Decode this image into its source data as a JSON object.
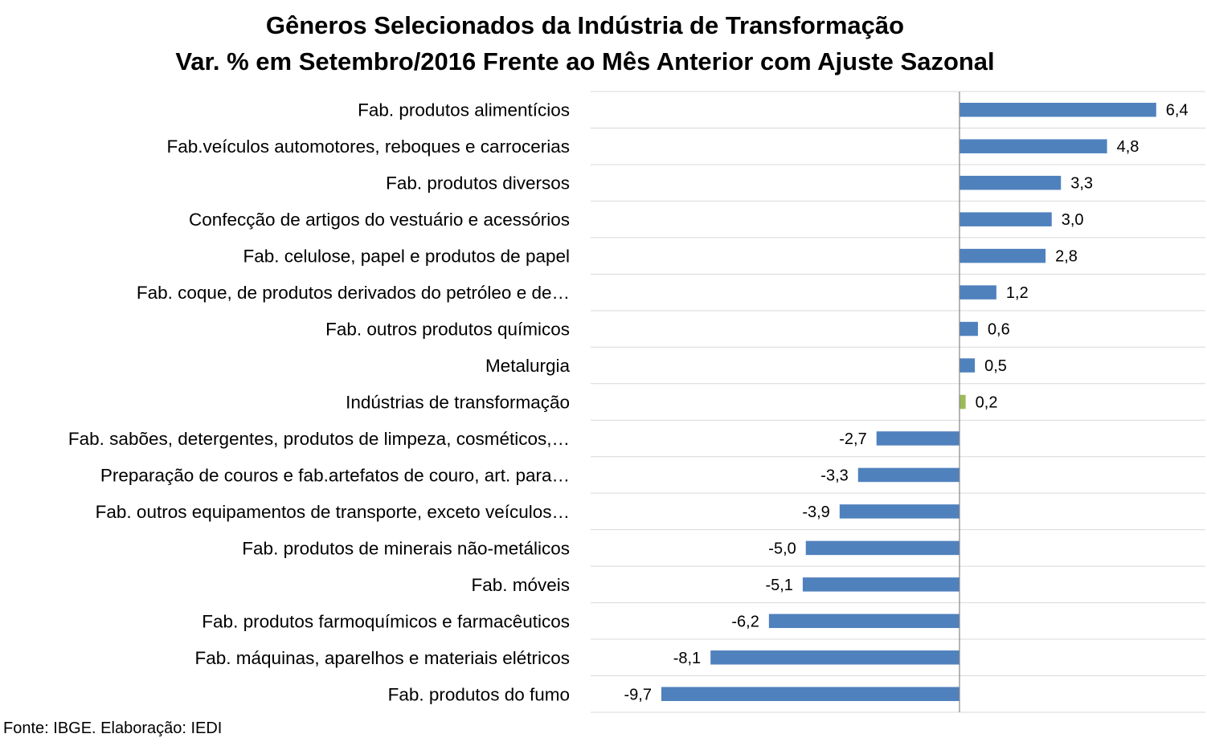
{
  "chart_data": {
    "type": "bar",
    "orientation": "horizontal",
    "title": "Gêneros Selecionados da Indústria de Transformação",
    "subtitle": "Var. % em Setembro/2016 Frente ao Mês Anterior com Ajuste Sazonal",
    "categories": [
      "Fab. produtos alimentícios",
      "Fab.veículos automotores, reboques e carrocerias",
      "Fab. produtos diversos",
      "Confecção de artigos do vestuário e acessórios",
      "Fab. celulose, papel e produtos de papel",
      "Fab. coque, de produtos derivados do petróleo e de…",
      "Fab. outros produtos químicos",
      "Metalurgia",
      "Indústrias de transformação",
      "Fab. sabões, detergentes, produtos de limpeza, cosméticos,…",
      "Preparação de couros e fab.artefatos de couro, art. para…",
      "Fab. outros equipamentos de transporte, exceto veículos…",
      "Fab. produtos de minerais não-metálicos",
      "Fab. móveis",
      "Fab. produtos farmoquímicos e farmacêuticos",
      "Fab. máquinas, aparelhos e materiais elétricos",
      "Fab. produtos do fumo"
    ],
    "values": [
      6.4,
      4.8,
      3.3,
      3.0,
      2.8,
      1.2,
      0.6,
      0.5,
      0.2,
      -2.7,
      -3.3,
      -3.9,
      -5.0,
      -5.1,
      -6.2,
      -8.1,
      -9.7
    ],
    "value_labels": [
      "6,4",
      "4,8",
      "3,3",
      "3,0",
      "2,8",
      "1,2",
      "0,6",
      "0,5",
      "0,2",
      "-2,7",
      "-3,3",
      "-3,9",
      "-5,0",
      "-5,1",
      "-6,2",
      "-8,1",
      "-9,7"
    ],
    "highlight_category": "Indústrias de transformação",
    "xlim": [
      -12,
      8
    ],
    "grid": true,
    "legend": "none",
    "colors": {
      "bar": "#4F81BD",
      "highlight": "#9BBB59",
      "grid": "#D9D9D9",
      "axis": "#868686"
    }
  },
  "source_text": "Fonte: IBGE. Elaboração: IEDI"
}
